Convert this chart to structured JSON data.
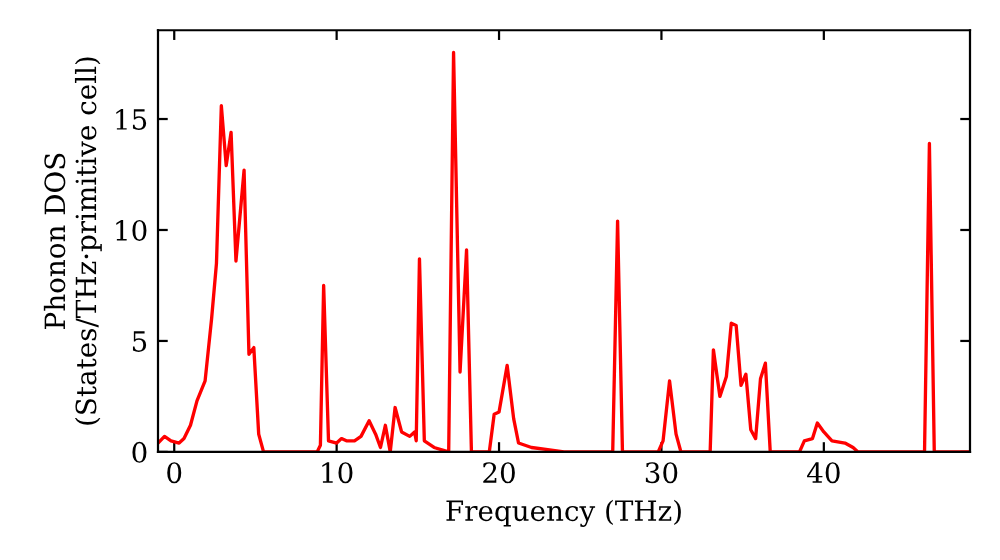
{
  "chart_data": {
    "type": "line",
    "xlabel": "Frequency (THz)",
    "ylabel": "Phonon DOS\n(States/THz·primitive cell)",
    "xlim": [
      -1,
      49
    ],
    "ylim": [
      0,
      19
    ],
    "xticks": [
      0,
      10,
      20,
      30,
      40
    ],
    "yticks": [
      0,
      5,
      10,
      15
    ],
    "grid": false,
    "legend": false,
    "marker": "none",
    "line_style": "solid",
    "series": [
      {
        "color": "#ff0000",
        "x": [
          -1,
          -0.6,
          -0.2,
          0.3,
          0.6,
          1,
          1.4,
          1.9,
          2.3,
          2.6,
          2.9,
          3.2,
          3.5,
          3.8,
          4.3,
          4.6,
          4.9,
          5.2,
          5.5,
          8.8,
          9.0,
          9.2,
          9.5,
          10,
          10.3,
          10.6,
          11.1,
          11.5,
          12,
          12.4,
          12.7,
          13,
          13.3,
          13.6,
          14,
          14.5,
          14.8,
          14.9,
          15.1,
          15.4,
          16,
          16.9,
          17.2,
          17.6,
          18.0,
          18.3,
          19.4,
          19.7,
          20,
          20.5,
          20.9,
          21.2,
          22,
          23,
          24,
          27.0,
          27.3,
          27.6,
          29.8,
          30.1,
          30.5,
          30.9,
          31.2,
          33,
          33.2,
          33.6,
          34,
          34.3,
          34.6,
          34.9,
          35.2,
          35.5,
          35.8,
          36.1,
          36.4,
          36.7,
          38.5,
          38.8,
          39.3,
          39.6,
          40,
          40.5,
          41.3,
          41.8,
          42.1,
          46.2,
          46.5,
          46.8,
          49
        ],
        "values": [
          0.4,
          0.7,
          0.5,
          0.4,
          0.6,
          1.2,
          2.3,
          3.2,
          6,
          8.5,
          15.6,
          12.9,
          14.4,
          8.6,
          12.7,
          4.4,
          4.7,
          0.8,
          0,
          0,
          0.3,
          7.5,
          0.5,
          0.4,
          0.6,
          0.5,
          0.5,
          0.7,
          1.4,
          0.8,
          0.2,
          1.2,
          0,
          2.0,
          0.9,
          0.7,
          0.9,
          0.5,
          8.7,
          0.5,
          0.2,
          0,
          18,
          3.6,
          9.1,
          0,
          0,
          1.7,
          1.8,
          3.9,
          1.5,
          0.4,
          0.2,
          0.1,
          0,
          0,
          10.4,
          0,
          0,
          0.5,
          3.2,
          0.8,
          0,
          0,
          4.6,
          2.5,
          3.4,
          5.8,
          5.7,
          3,
          3.5,
          1,
          0.6,
          3.3,
          4.0,
          0,
          0,
          0.5,
          0.6,
          1.3,
          0.9,
          0.5,
          0.4,
          0.2,
          0,
          0,
          13.9,
          0,
          0
        ]
      }
    ]
  }
}
